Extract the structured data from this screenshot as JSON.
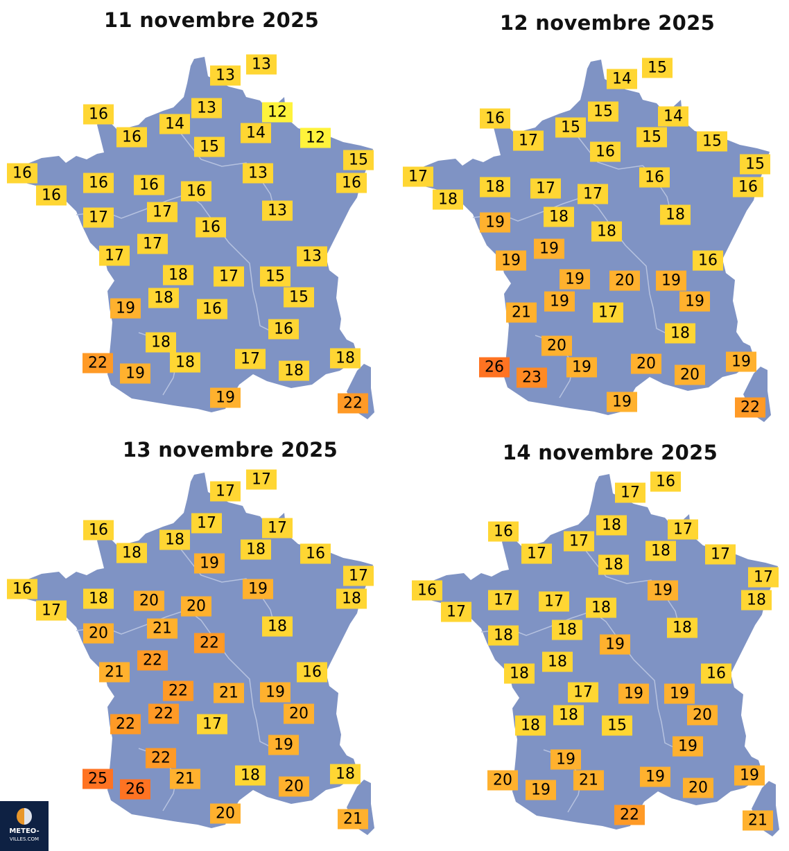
{
  "colors": {
    "land": "#7f93c4",
    "river": "#b7c3e0",
    "scale": [
      {
        "max": 12,
        "color": "#fff33b"
      },
      {
        "max": 18,
        "color": "#ffd633"
      },
      {
        "max": 21,
        "color": "#ffb12e"
      },
      {
        "max": 22,
        "color": "#ff9a26"
      },
      {
        "max": 23,
        "color": "#ff8a24"
      },
      {
        "max": 99,
        "color": "#ff7322"
      }
    ]
  },
  "maps": [
    {
      "title": "11 novembre 2025",
      "temps": [
        "13",
        "13",
        "16",
        "13",
        "12",
        "14",
        "16",
        "14",
        "12",
        "15",
        "16",
        "15",
        "13",
        "16",
        "16",
        "16",
        "16",
        "16",
        "17",
        "17",
        "13",
        "16",
        "17",
        "17",
        "13",
        "18",
        "17",
        "15",
        "18",
        "15",
        "19",
        "16",
        "16",
        "18",
        "22",
        "18",
        "17",
        "18",
        "19",
        "18",
        "19",
        "22"
      ]
    },
    {
      "title": "12 novembre 2025",
      "temps": [
        "15",
        "14",
        "16",
        "15",
        "14",
        "15",
        "17",
        "15",
        "15",
        "16",
        "17",
        "15",
        "16",
        "18",
        "17",
        "17",
        "16",
        "18",
        "19",
        "18",
        "18",
        "18",
        "19",
        "19",
        "16",
        "19",
        "20",
        "19",
        "19",
        "19",
        "21",
        "17",
        "18",
        "20",
        "26",
        "19",
        "20",
        "19",
        "23",
        "20",
        "19",
        "22"
      ]
    },
    {
      "title": "13 novembre 2025",
      "temps": [
        "17",
        "17",
        "16",
        "17",
        "17",
        "18",
        "18",
        "18",
        "16",
        "19",
        "16",
        "17",
        "19",
        "18",
        "20",
        "20",
        "18",
        "17",
        "20",
        "21",
        "18",
        "22",
        "22",
        "21",
        "16",
        "22",
        "21",
        "19",
        "22",
        "20",
        "22",
        "17",
        "19",
        "22",
        "25",
        "21",
        "18",
        "18",
        "26",
        "20",
        "20",
        "21"
      ]
    },
    {
      "title": "14 novembre 2025",
      "temps": [
        "16",
        "17",
        "16",
        "18",
        "17",
        "17",
        "17",
        "18",
        "17",
        "18",
        "16",
        "17",
        "19",
        "17",
        "17",
        "18",
        "18",
        "17",
        "18",
        "18",
        "18",
        "19",
        "18",
        "18",
        "16",
        "17",
        "19",
        "19",
        "18",
        "20",
        "18",
        "15",
        "19",
        "19",
        "20",
        "21",
        "19",
        "19",
        "19",
        "20",
        "22",
        "21"
      ]
    }
  ],
  "logo": {
    "line1": "METEO-",
    "line2": "VILLES.COM"
  }
}
